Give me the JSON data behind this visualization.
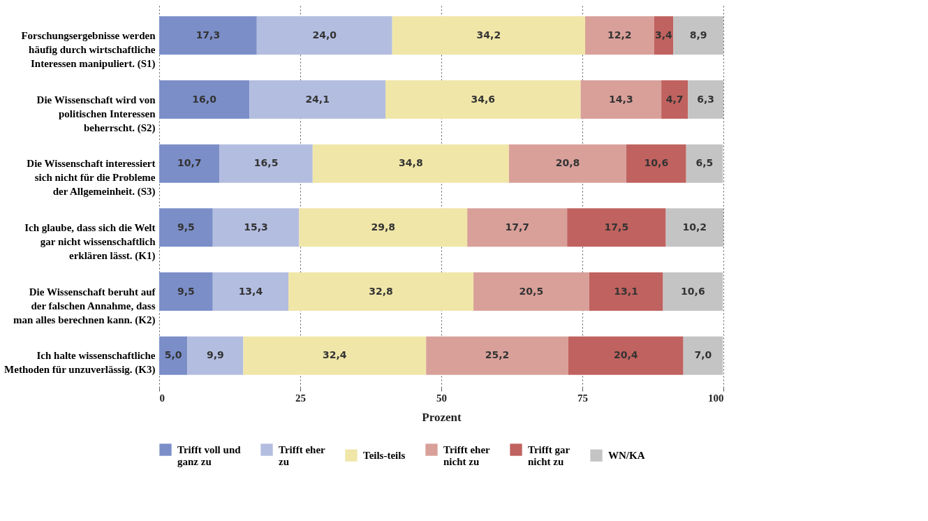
{
  "chart_data": {
    "type": "bar",
    "orientation": "horizontal",
    "stacked": true,
    "xlabel": "Prozent",
    "categories": [
      "Forschungsergebnisse werden\nhäufig durch wirtschaftliche\nInteressen manipuliert. (S1)",
      "Die Wissenschaft wird von\npolitischen Interessen\nbeherrscht. (S2)",
      "Die Wissenschaft interessiert\nsich nicht für die Probleme\nder Allgemeinheit. (S3)",
      "Ich glaube, dass sich die Welt\ngar nicht wissenschaftlich\nerklären lässt. (K1)",
      "Die Wissenschaft beruht auf\nder falschen Annahme, dass\nman alles berechnen kann. (K2)",
      "Ich halte wissenschaftliche\nMethoden für unzuverlässig. (K3)"
    ],
    "series": [
      {
        "name": "Trifft voll und\nganz zu",
        "color": "#7b8ec8",
        "values": [
          17.3,
          16.0,
          10.7,
          9.5,
          9.5,
          5.0
        ],
        "value_labels": [
          "17,3",
          "16,0",
          "10,7",
          "9,5",
          "9,5",
          "5,0"
        ]
      },
      {
        "name": "Trifft eher\nzu",
        "color": "#b3bde0",
        "values": [
          24.0,
          24.1,
          16.5,
          15.3,
          13.4,
          9.9
        ],
        "value_labels": [
          "24,0",
          "24,1",
          "16,5",
          "15,3",
          "13,4",
          "9,9"
        ]
      },
      {
        "name": "Teils-teils",
        "color": "#f0e6a8",
        "values": [
          34.2,
          34.6,
          34.8,
          29.8,
          32.8,
          32.4
        ],
        "value_labels": [
          "34,2",
          "34,6",
          "34,8",
          "29,8",
          "32,8",
          "32,4"
        ]
      },
      {
        "name": "Trifft eher\nnicht zu",
        "color": "#d9a09a",
        "values": [
          12.2,
          14.3,
          20.8,
          17.7,
          20.5,
          25.2
        ],
        "value_labels": [
          "12,2",
          "14,3",
          "20,8",
          "17,7",
          "20,5",
          "25,2"
        ]
      },
      {
        "name": "Trifft gar\nnicht zu",
        "color": "#c0625f",
        "values": [
          3.4,
          4.7,
          10.6,
          17.5,
          13.1,
          20.4
        ],
        "value_labels": [
          "3,4",
          "4,7",
          "10,6",
          "17,5",
          "13,1",
          "20,4"
        ]
      },
      {
        "name": "WN/KA",
        "color": "#c4c4c4",
        "values": [
          8.9,
          6.3,
          6.5,
          10.2,
          10.6,
          7.0
        ],
        "value_labels": [
          "8,9",
          "6,3",
          "6,5",
          "10,2",
          "10,6",
          "7,0"
        ]
      }
    ],
    "xlim": [
      0,
      100
    ],
    "xticks": [
      0,
      25,
      50,
      75,
      100
    ],
    "grid": "x",
    "legend": "bottom"
  }
}
